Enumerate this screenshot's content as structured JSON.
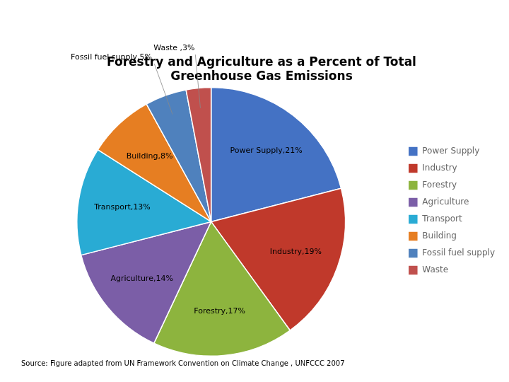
{
  "chart_data": {
    "type": "pie",
    "title": "Forestry and Agriculture as a Percent of Total\nGreenhouse Gas Emissions",
    "categories": [
      "Power Supply",
      "Industry",
      "Forestry",
      "Agriculture",
      "Transport",
      "Building",
      "Fossil fuel supply",
      "Waste"
    ],
    "values": [
      21,
      19,
      17,
      14,
      13,
      8,
      5,
      3
    ],
    "value_labels": [
      "Power Supply,21%",
      "Industry,19%",
      "Forestry,17%",
      "Agriculture,14%",
      "Transport,13%",
      "Building,8%",
      "Fossil fuel supply,5%",
      "Waste ,3%"
    ],
    "data_labels": true,
    "colors": [
      "#4472C4",
      "#C0392B",
      "#8DB43E",
      "#7B5EA7",
      "#29ABD4",
      "#E67E22",
      "#4F81BD",
      "#C0504D"
    ],
    "legend": "right",
    "annotations": [
      "Source: Figure adapted from UN Framework Convention on Climate Change , UNFCCC 2007"
    ]
  }
}
